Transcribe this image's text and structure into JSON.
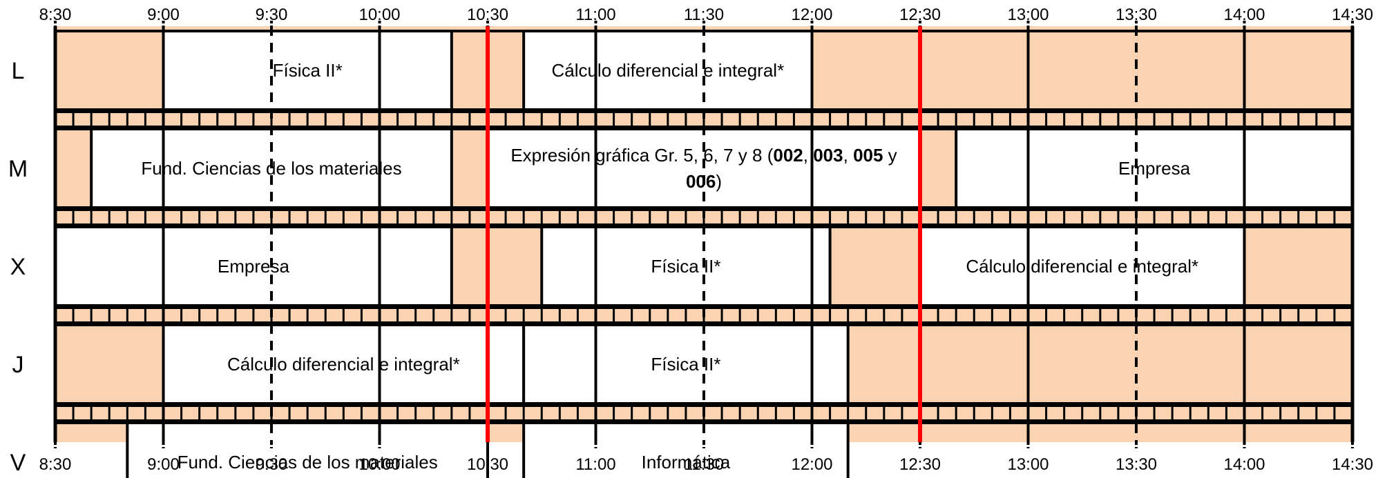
{
  "colors": {
    "free": "#FAD3B2",
    "class": "#FFFFFF",
    "line": "#000000",
    "marker": "#FF0000"
  },
  "timeline": {
    "start": "8:30",
    "end": "14:30",
    "ticks": [
      "8:30",
      "9:00",
      "9:30",
      "10:00",
      "10:30",
      "11:00",
      "11:30",
      "12:00",
      "12:30",
      "13:00",
      "13:30",
      "14:00",
      "14:30"
    ],
    "red_markers": [
      "10:30",
      "12:30"
    ]
  },
  "days": [
    {
      "label": "L",
      "classes": [
        {
          "start": "9:00",
          "end": "10:20",
          "text": [
            [
              {
                "t": "Física II*"
              }
            ]
          ]
        },
        {
          "start": "10:40",
          "end": "12:00",
          "text": [
            [
              {
                "t": "Cálculo diferencial e integral*"
              }
            ]
          ]
        }
      ]
    },
    {
      "label": "M",
      "classes": [
        {
          "start": "8:40",
          "end": "10:20",
          "text": [
            [
              {
                "t": "Fund. Ciencias de los materiales"
              }
            ]
          ]
        },
        {
          "start": "10:30",
          "end": "12:30",
          "text": [
            [
              {
                "t": "Expresión gráfica Gr. 5, 6, 7 y 8 ("
              },
              {
                "t": "002",
                "b": true
              },
              {
                "t": ", "
              },
              {
                "t": "003",
                "b": true
              },
              {
                "t": ", "
              },
              {
                "t": "005",
                "b": true
              },
              {
                "t": " y"
              }
            ],
            [
              {
                "t": "006",
                "b": true
              },
              {
                "t": ")"
              }
            ]
          ]
        },
        {
          "start": "12:40",
          "end": "14:30",
          "text": [
            [
              {
                "t": "Empresa"
              }
            ]
          ]
        }
      ]
    },
    {
      "label": "X",
      "classes": [
        {
          "start": "8:30",
          "end": "10:20",
          "text": [
            [
              {
                "t": "Empresa"
              }
            ]
          ]
        },
        {
          "start": "10:45",
          "end": "12:05",
          "text": [
            [
              {
                "t": "Física II*"
              }
            ]
          ]
        },
        {
          "start": "12:30",
          "end": "14:00",
          "text": [
            [
              {
                "t": "Cálculo diferencial e integral*"
              }
            ]
          ]
        }
      ]
    },
    {
      "label": "J",
      "classes": [
        {
          "start": "9:00",
          "end": "10:40",
          "text": [
            [
              {
                "t": "Cálculo diferencial e integral*"
              }
            ]
          ]
        },
        {
          "start": "10:40",
          "end": "12:10",
          "text": [
            [
              {
                "t": "Física II*"
              }
            ]
          ]
        }
      ]
    },
    {
      "label": "V",
      "classes": [
        {
          "start": "8:50",
          "end": "10:30",
          "text": [
            [
              {
                "t": "Fund. Ciencias de los materiales"
              }
            ]
          ]
        },
        {
          "start": "10:40",
          "end": "12:10",
          "text": [
            [
              {
                "t": "Informática"
              }
            ]
          ]
        }
      ]
    }
  ]
}
